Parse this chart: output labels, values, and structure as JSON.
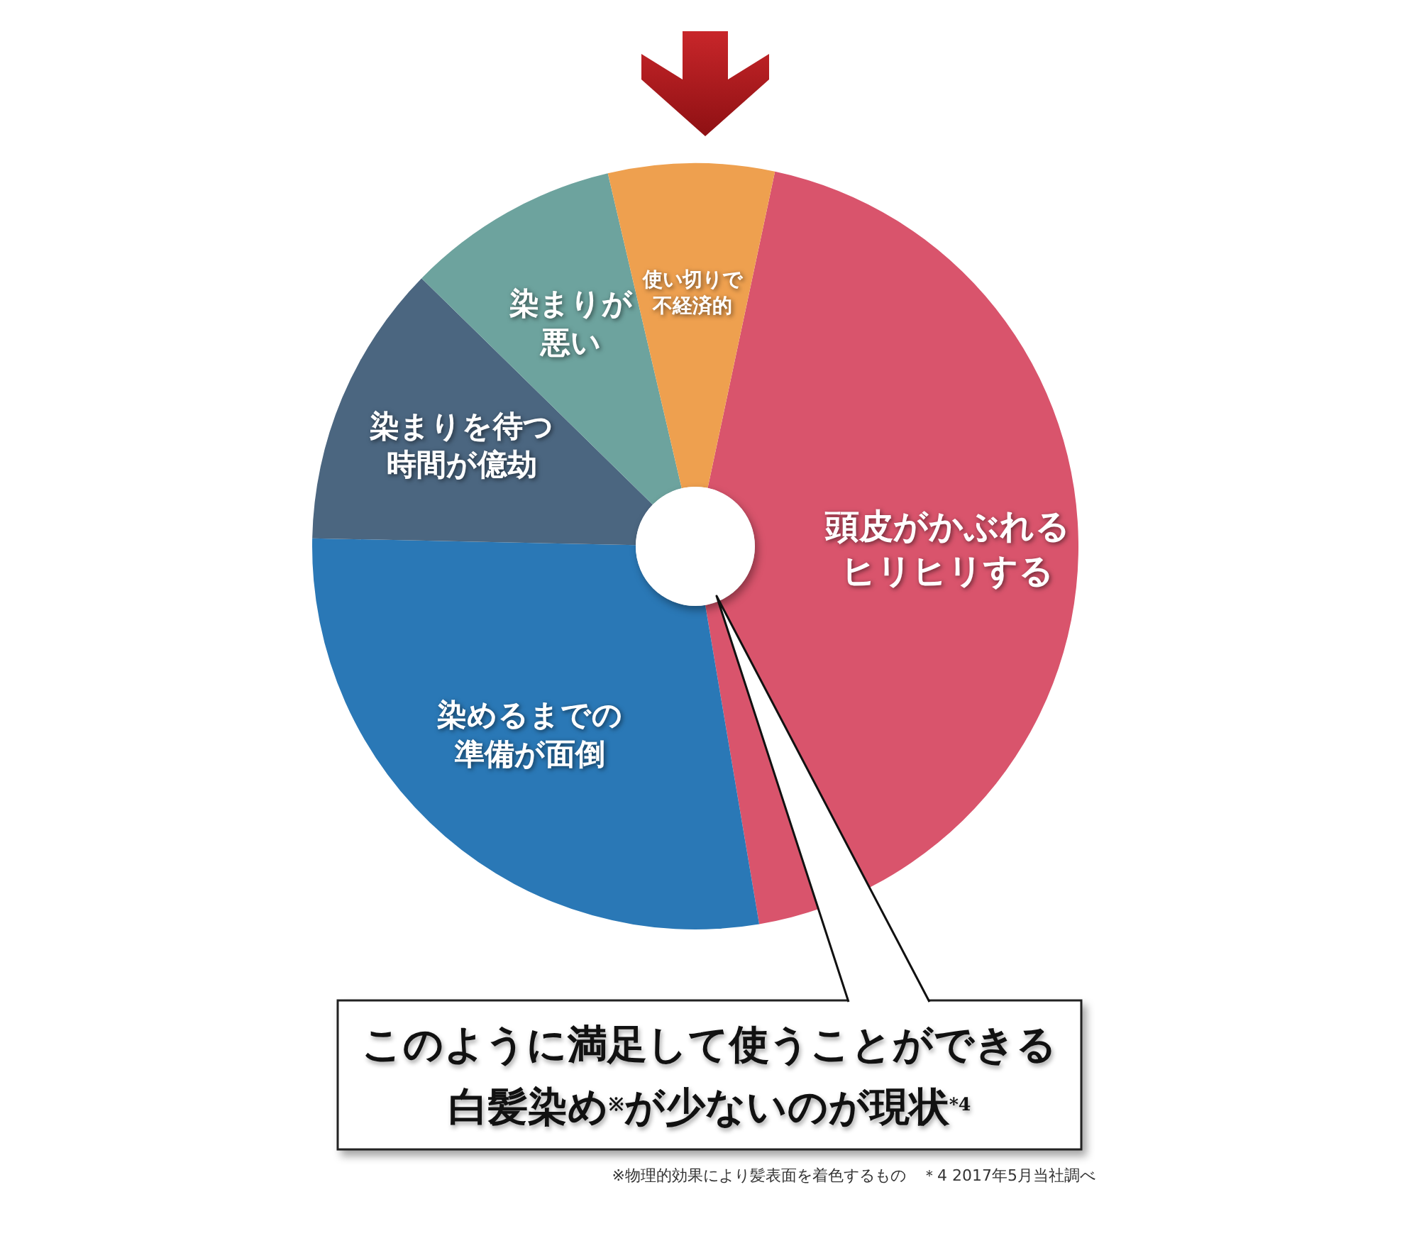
{
  "chart_data": {
    "type": "donut",
    "categories": [
      "頭皮がかぶれるヒリヒリする",
      "染めるまでの準備が面倒",
      "染まりを待つ時間が億劫",
      "染まりが悪い",
      "使い切りで不経済的"
    ],
    "values": [
      44,
      28,
      12,
      9,
      7
    ],
    "colors": [
      "#d9546c",
      "#2a78b6",
      "#4b6680",
      "#6da39e",
      "#eea04f"
    ],
    "annotations": [
      "このように満足して使うことができる白髪染め$^{※}$が少ないのが現状$^{*4}$",
      "※物理的効果により髪表面を着色するもの　＊4 2017年5月当社調べ"
    ]
  }
}
